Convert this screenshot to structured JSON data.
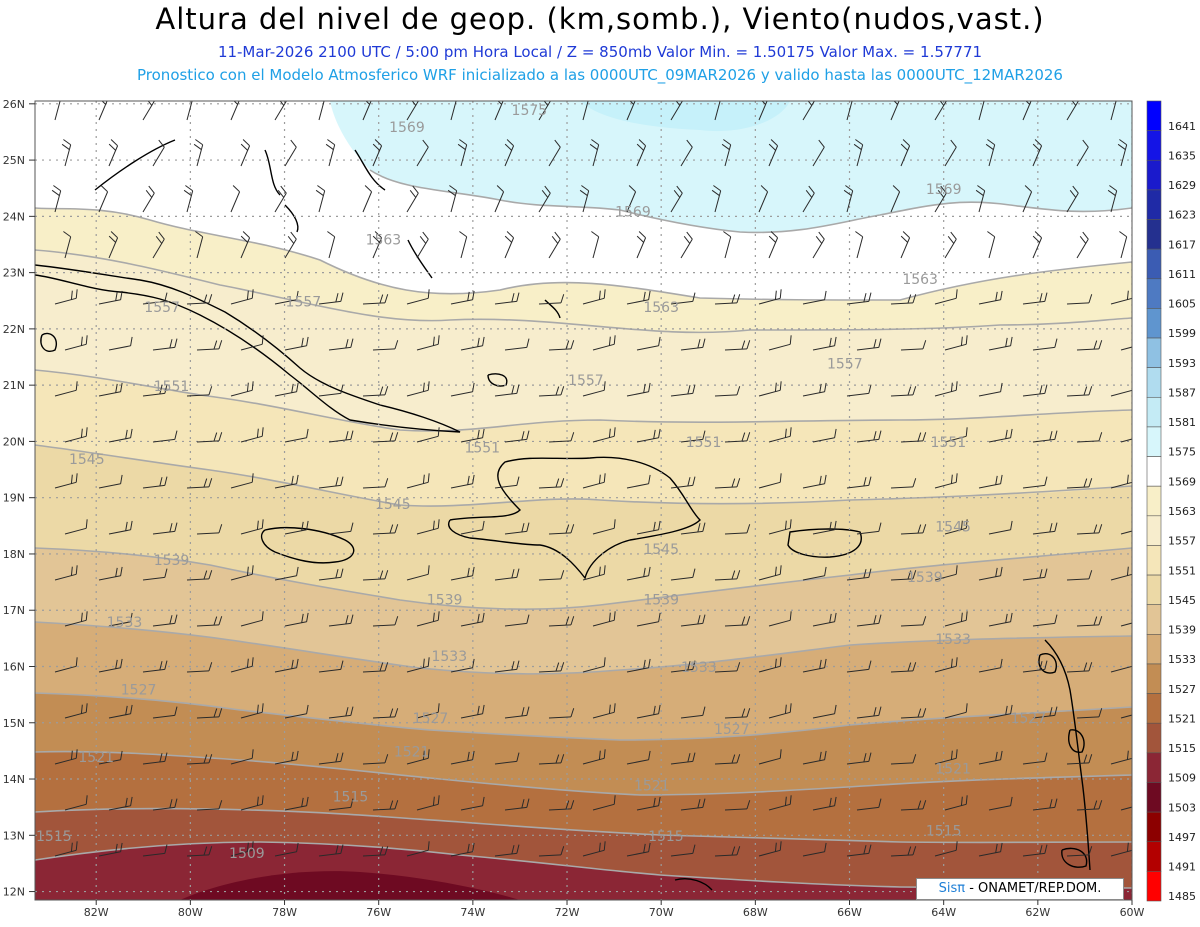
{
  "header": {
    "title": "Altura del nivel de geop. (km,somb.), Viento(nudos,vast.)",
    "subtitle": "11-Mar-2026  2100 UTC / 5:00 pm Hora Local / Z = 850mb     Valor Min. = 1.50175  Valor Max. = 1.57771",
    "model_line": "Pronostico con el Modelo Atmosferico WRF inicializado a las 0000UTC_09MAR2026 y valido hasta las  0000UTC_12MAR2026"
  },
  "map": {
    "lat_labels": [
      "26N",
      "25N",
      "24N",
      "23N",
      "22N",
      "21N",
      "20N",
      "19N",
      "18N",
      "17N",
      "16N",
      "15N",
      "14N",
      "13N",
      "12N"
    ],
    "lon_labels": [
      "82W",
      "80W",
      "78W",
      "76W",
      "74W",
      "72W",
      "70W",
      "68W",
      "66W",
      "64W",
      "62W",
      "60W"
    ],
    "contour_labels": [
      {
        "text": "1575",
        "lat": 25.8,
        "lon": -72.8
      },
      {
        "text": "1569",
        "lat": 25.5,
        "lon": -75.4
      },
      {
        "text": "1569",
        "lat": 24.0,
        "lon": -70.6
      },
      {
        "text": "1569",
        "lat": 24.4,
        "lon": -64.0
      },
      {
        "text": "1563",
        "lat": 23.5,
        "lon": -75.9
      },
      {
        "text": "1563",
        "lat": 22.8,
        "lon": -64.5
      },
      {
        "text": "1563",
        "lat": 22.3,
        "lon": -70.0
      },
      {
        "text": "1557",
        "lat": 22.3,
        "lon": -80.6
      },
      {
        "text": "1557",
        "lat": 22.4,
        "lon": -77.6
      },
      {
        "text": "1557",
        "lat": 21.0,
        "lon": -71.6
      },
      {
        "text": "1557",
        "lat": 21.3,
        "lon": -66.1
      },
      {
        "text": "1551",
        "lat": 20.9,
        "lon": -80.4
      },
      {
        "text": "1551",
        "lat": 19.8,
        "lon": -73.8
      },
      {
        "text": "1551",
        "lat": 19.9,
        "lon": -69.1
      },
      {
        "text": "1551",
        "lat": 19.9,
        "lon": -63.9
      },
      {
        "text": "1545",
        "lat": 19.6,
        "lon": -82.2
      },
      {
        "text": "1545",
        "lat": 18.8,
        "lon": -75.7
      },
      {
        "text": "1545",
        "lat": 18.0,
        "lon": -70.0
      },
      {
        "text": "1545",
        "lat": 18.4,
        "lon": -63.8
      },
      {
        "text": "1539",
        "lat": 17.8,
        "lon": -80.4
      },
      {
        "text": "1539",
        "lat": 17.1,
        "lon": -74.6
      },
      {
        "text": "1539",
        "lat": 17.1,
        "lon": -70.0
      },
      {
        "text": "1539",
        "lat": 17.5,
        "lon": -64.4
      },
      {
        "text": "1533",
        "lat": 16.7,
        "lon": -81.4
      },
      {
        "text": "1533",
        "lat": 16.1,
        "lon": -74.5
      },
      {
        "text": "1533",
        "lat": 15.9,
        "lon": -69.2
      },
      {
        "text": "1533",
        "lat": 16.4,
        "lon": -63.8
      },
      {
        "text": "1527",
        "lat": 15.5,
        "lon": -81.1
      },
      {
        "text": "1527",
        "lat": 15.0,
        "lon": -74.9
      },
      {
        "text": "1527",
        "lat": 14.8,
        "lon": -68.5
      },
      {
        "text": "1527",
        "lat": 15.0,
        "lon": -62.2
      },
      {
        "text": "1521",
        "lat": 14.3,
        "lon": -82.0
      },
      {
        "text": "1521",
        "lat": 14.4,
        "lon": -75.3
      },
      {
        "text": "1521",
        "lat": 13.8,
        "lon": -70.2
      },
      {
        "text": "1521",
        "lat": 14.1,
        "lon": -63.8
      },
      {
        "text": "1515",
        "lat": 13.6,
        "lon": -76.6
      },
      {
        "text": "1515",
        "lat": 12.9,
        "lon": -82.9
      },
      {
        "text": "1515",
        "lat": 12.9,
        "lon": -69.9
      },
      {
        "text": "1515",
        "lat": 13.0,
        "lon": -64.0
      },
      {
        "text": "1509",
        "lat": 12.6,
        "lon": -78.8
      }
    ]
  },
  "legend": {
    "levels": [
      "1641",
      "1635",
      "1629",
      "1623",
      "1617",
      "1611",
      "1605",
      "1599",
      "1593",
      "1587",
      "1581",
      "1575",
      "1569",
      "1563",
      "1557",
      "1551",
      "1545",
      "1539",
      "1533",
      "1527",
      "1521",
      "1515",
      "1509",
      "1503",
      "1497",
      "1491",
      "1485"
    ],
    "colors": [
      "#0000ff",
      "#1414e6",
      "#1a1acc",
      "#1f2aa6",
      "#24308f",
      "#3b5cb3",
      "#4e7ac2",
      "#5f95cf",
      "#8fc1e3",
      "#b0dcef",
      "#c4ebf5",
      "#d7f6fb",
      "#ffffff",
      "#f8efc8",
      "#f7edcd",
      "#f5e6b9",
      "#ecd9a6",
      "#e2c596",
      "#d6ad78",
      "#c28d54",
      "#b4703f",
      "#a2553b",
      "#8b2635",
      "#6e0a22",
      "#8c0000",
      "#b30000",
      "#ff0000"
    ]
  },
  "credit": {
    "sis": "Sisπ",
    "rest": " - ONAMET/REP.DOM."
  }
}
